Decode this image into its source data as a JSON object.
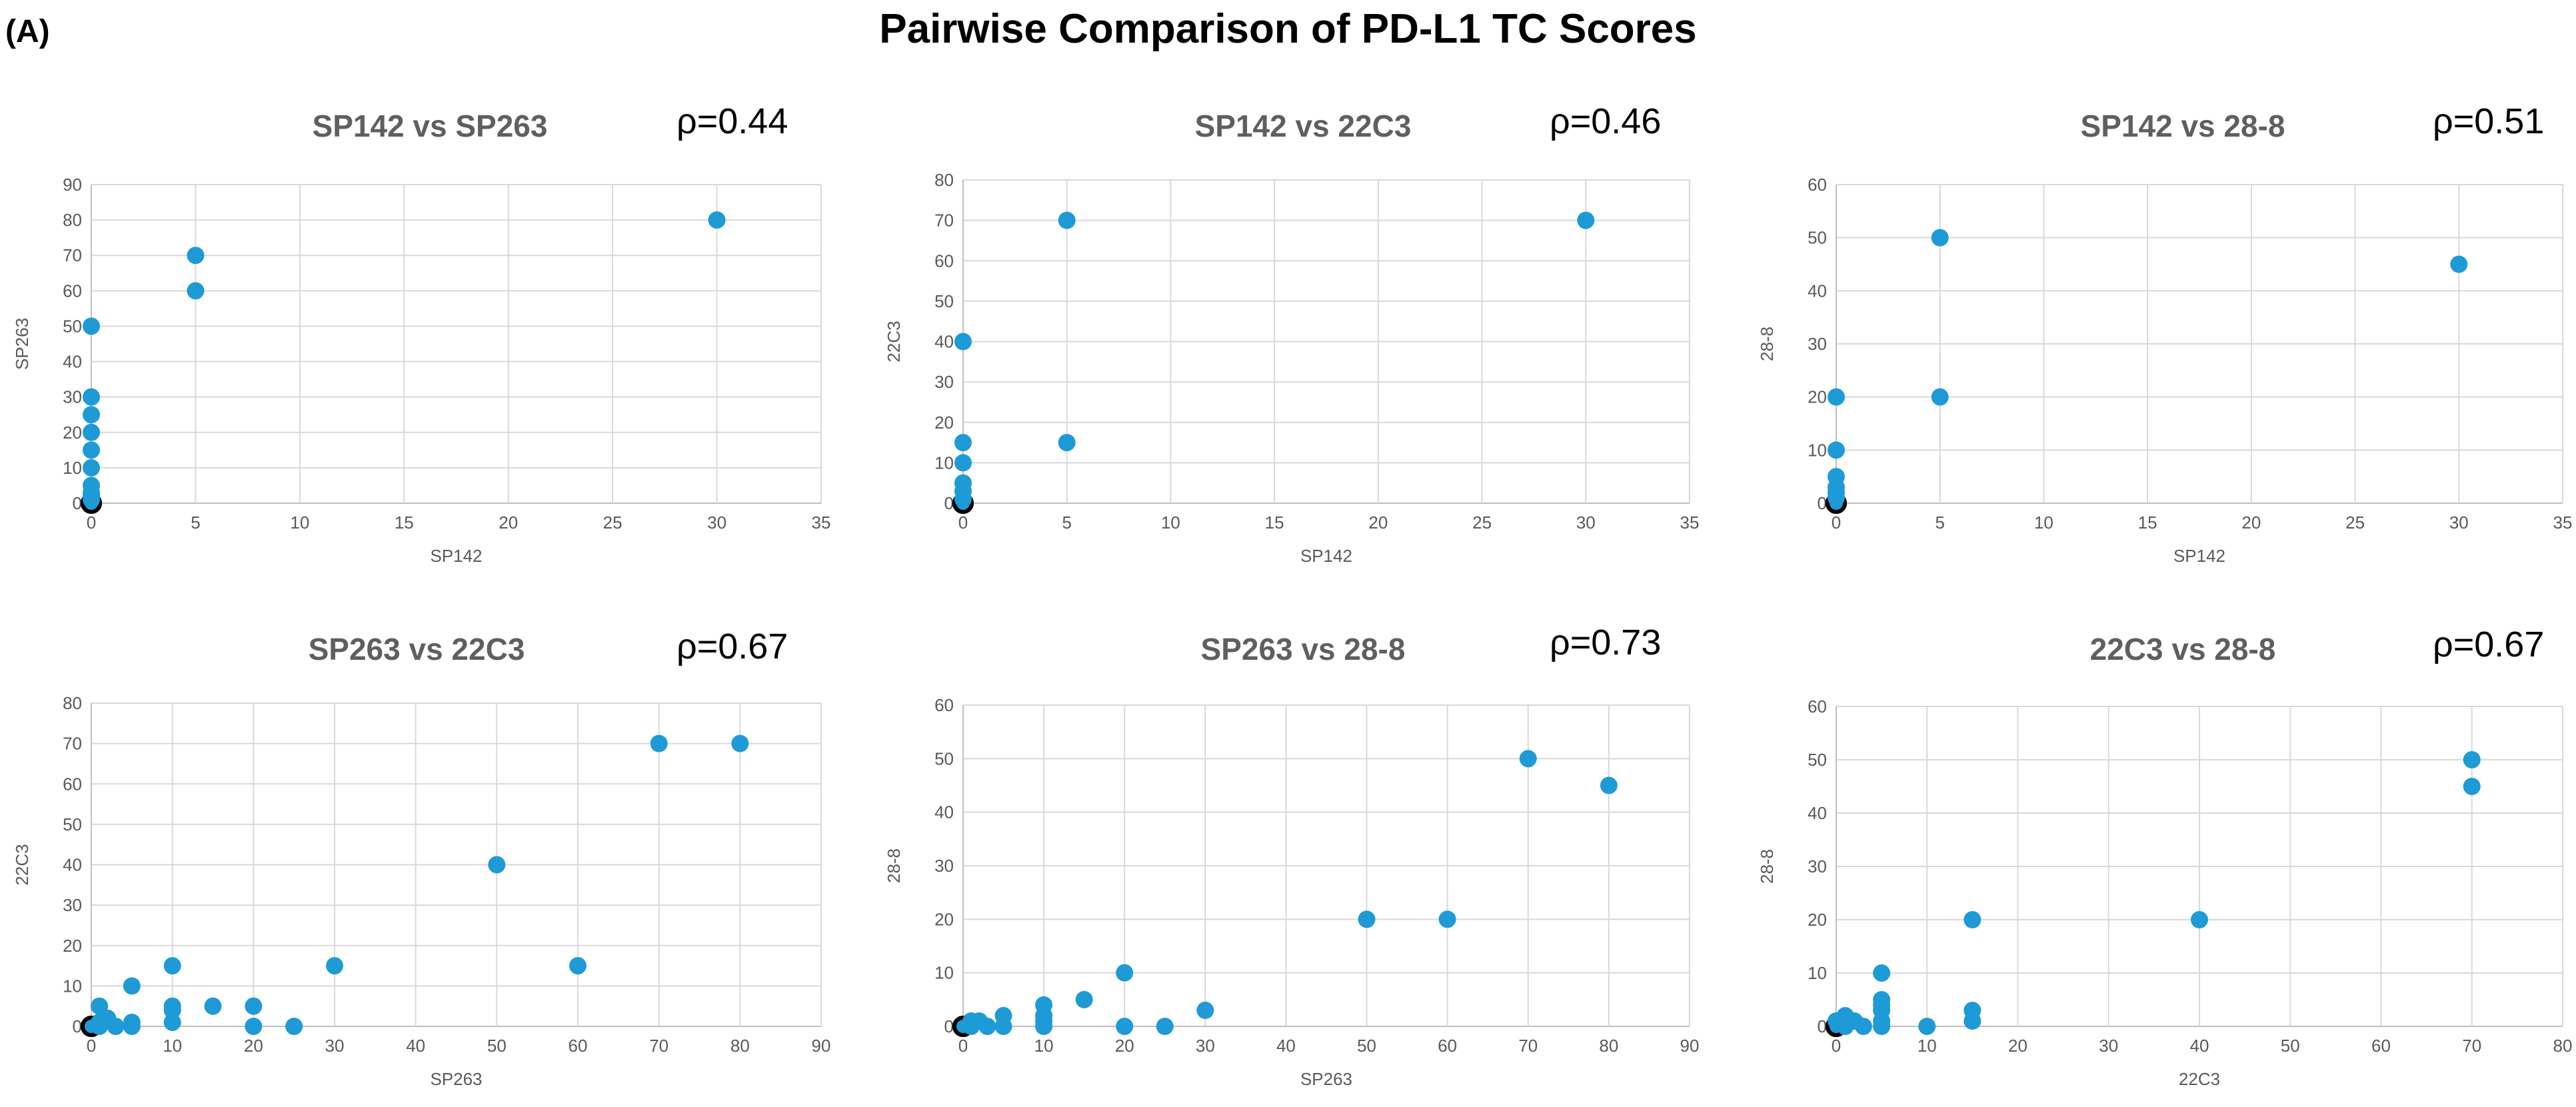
{
  "figure": {
    "panel_label": "(A)",
    "title": "Pairwise Comparison of PD-L1 TC Scores"
  },
  "chart_data": [
    {
      "type": "scatter",
      "title": "SP142 vs SP263",
      "annotation": "ρ=0.44",
      "xlabel": "SP142",
      "ylabel": "SP263",
      "xlim": [
        0,
        35
      ],
      "ylim": [
        0,
        90
      ],
      "xticks": [
        0,
        5,
        10,
        15,
        20,
        25,
        30,
        35
      ],
      "yticks": [
        0,
        10,
        20,
        30,
        40,
        50,
        60,
        70,
        80,
        90
      ],
      "color": "#1e9ad6",
      "points": [
        [
          0,
          0
        ],
        [
          0,
          0
        ],
        [
          0,
          1
        ],
        [
          0,
          2
        ],
        [
          0,
          3
        ],
        [
          0,
          5
        ],
        [
          0,
          10
        ],
        [
          0,
          15
        ],
        [
          0,
          20
        ],
        [
          0,
          25
        ],
        [
          0,
          30
        ],
        [
          0,
          50
        ],
        [
          5,
          60
        ],
        [
          5,
          70
        ],
        [
          30,
          80
        ]
      ]
    },
    {
      "type": "scatter",
      "title": "SP142 vs 22C3",
      "annotation": "ρ=0.46",
      "xlabel": "SP142",
      "ylabel": "22C3",
      "xlim": [
        0,
        35
      ],
      "ylim": [
        0,
        80
      ],
      "xticks": [
        0,
        5,
        10,
        15,
        20,
        25,
        30,
        35
      ],
      "yticks": [
        0,
        10,
        20,
        30,
        40,
        50,
        60,
        70,
        80
      ],
      "color": "#1e9ad6",
      "points": [
        [
          0,
          0
        ],
        [
          0,
          0
        ],
        [
          0,
          1
        ],
        [
          0,
          3
        ],
        [
          0,
          5
        ],
        [
          0,
          10
        ],
        [
          0,
          15
        ],
        [
          0,
          40
        ],
        [
          5,
          15
        ],
        [
          5,
          70
        ],
        [
          30,
          70
        ]
      ]
    },
    {
      "type": "scatter",
      "title": "SP142 vs 28-8",
      "annotation": "ρ=0.51",
      "xlabel": "SP142",
      "ylabel": "28-8",
      "xlim": [
        0,
        35
      ],
      "ylim": [
        0,
        60
      ],
      "xticks": [
        0,
        5,
        10,
        15,
        20,
        25,
        30,
        35
      ],
      "yticks": [
        0,
        10,
        20,
        30,
        40,
        50,
        60
      ],
      "color": "#1e9ad6",
      "points": [
        [
          0,
          0
        ],
        [
          0,
          0
        ],
        [
          0,
          1
        ],
        [
          0,
          2
        ],
        [
          0,
          3
        ],
        [
          0,
          5
        ],
        [
          0,
          10
        ],
        [
          0,
          20
        ],
        [
          5,
          20
        ],
        [
          5,
          50
        ],
        [
          30,
          45
        ]
      ]
    },
    {
      "type": "scatter",
      "title": "SP263 vs 22C3",
      "annotation": "ρ=0.67",
      "xlabel": "SP263",
      "ylabel": "22C3",
      "xlim": [
        0,
        90
      ],
      "ylim": [
        0,
        80
      ],
      "xticks": [
        0,
        10,
        20,
        30,
        40,
        50,
        60,
        70,
        80,
        90
      ],
      "yticks": [
        0,
        10,
        20,
        30,
        40,
        50,
        60,
        70,
        80
      ],
      "color": "#1e9ad6",
      "points": [
        [
          0,
          0
        ],
        [
          0,
          0
        ],
        [
          1,
          0
        ],
        [
          1,
          1
        ],
        [
          1,
          5
        ],
        [
          2,
          2
        ],
        [
          3,
          0
        ],
        [
          5,
          0
        ],
        [
          5,
          1
        ],
        [
          5,
          10
        ],
        [
          10,
          1
        ],
        [
          10,
          4
        ],
        [
          10,
          5
        ],
        [
          10,
          15
        ],
        [
          15,
          5
        ],
        [
          20,
          0
        ],
        [
          20,
          5
        ],
        [
          25,
          0
        ],
        [
          30,
          15
        ],
        [
          50,
          40
        ],
        [
          60,
          15
        ],
        [
          70,
          70
        ],
        [
          80,
          70
        ]
      ]
    },
    {
      "type": "scatter",
      "title": "SP263 vs 28-8",
      "annotation": "ρ=0.73",
      "xlabel": "SP263",
      "ylabel": "28-8",
      "xlim": [
        0,
        90
      ],
      "ylim": [
        0,
        60
      ],
      "xticks": [
        0,
        10,
        20,
        30,
        40,
        50,
        60,
        70,
        80,
        90
      ],
      "yticks": [
        0,
        10,
        20,
        30,
        40,
        50,
        60
      ],
      "color": "#1e9ad6",
      "points": [
        [
          0,
          0
        ],
        [
          0,
          0
        ],
        [
          1,
          0
        ],
        [
          1,
          1
        ],
        [
          2,
          1
        ],
        [
          3,
          0
        ],
        [
          5,
          0
        ],
        [
          5,
          2
        ],
        [
          10,
          0
        ],
        [
          10,
          1
        ],
        [
          10,
          2
        ],
        [
          10,
          4
        ],
        [
          15,
          5
        ],
        [
          20,
          0
        ],
        [
          20,
          10
        ],
        [
          25,
          0
        ],
        [
          30,
          3
        ],
        [
          50,
          20
        ],
        [
          60,
          20
        ],
        [
          70,
          50
        ],
        [
          80,
          45
        ]
      ]
    },
    {
      "type": "scatter",
      "title": "22C3 vs 28-8",
      "annotation": "ρ=0.67",
      "xlabel": "22C3",
      "ylabel": "28-8",
      "xlim": [
        0,
        80
      ],
      "ylim": [
        0,
        60
      ],
      "xticks": [
        0,
        10,
        20,
        30,
        40,
        50,
        60,
        70,
        80
      ],
      "yticks": [
        0,
        10,
        20,
        30,
        40,
        50,
        60
      ],
      "color": "#1e9ad6",
      "points": [
        [
          0,
          0
        ],
        [
          0,
          0
        ],
        [
          0,
          1
        ],
        [
          1,
          0
        ],
        [
          1,
          2
        ],
        [
          2,
          1
        ],
        [
          3,
          0
        ],
        [
          5,
          0
        ],
        [
          5,
          1
        ],
        [
          5,
          3
        ],
        [
          5,
          4
        ],
        [
          5,
          5
        ],
        [
          5,
          10
        ],
        [
          10,
          0
        ],
        [
          15,
          1
        ],
        [
          15,
          3
        ],
        [
          15,
          20
        ],
        [
          40,
          20
        ],
        [
          70,
          45
        ],
        [
          70,
          50
        ]
      ]
    }
  ]
}
